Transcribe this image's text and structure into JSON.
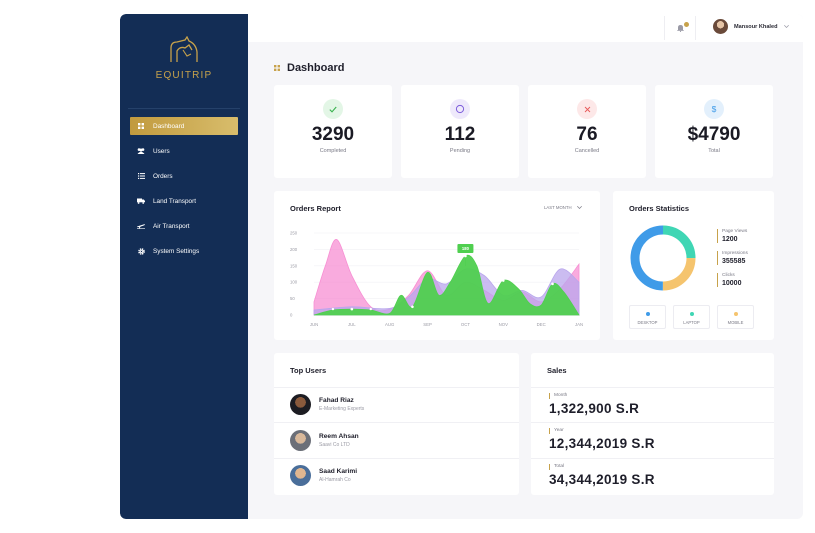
{
  "brand": {
    "name": "EQUITRIP"
  },
  "sidebar": {
    "items": [
      {
        "label": "Dashboard",
        "icon": "grid-icon",
        "active": true
      },
      {
        "label": "Users",
        "icon": "users-icon",
        "active": false
      },
      {
        "label": "Orders",
        "icon": "list-icon",
        "active": false
      },
      {
        "label": "Land Transport",
        "icon": "truck-icon",
        "active": false
      },
      {
        "label": "Air Transport",
        "icon": "plane-icon",
        "active": false
      },
      {
        "label": "System Settings",
        "icon": "gear-icon",
        "active": false
      }
    ]
  },
  "header": {
    "user_name": "Mansour Khaled"
  },
  "page": {
    "title": "Dashboard"
  },
  "stats": [
    {
      "value": "3290",
      "label": "Completed",
      "icon": "check-icon",
      "color": "#37b24d",
      "bg": "#e3f6e6"
    },
    {
      "value": "112",
      "label": "Pending",
      "icon": "pending-circle-icon",
      "color": "#7c5cdb",
      "bg": "#eee9fb"
    },
    {
      "value": "76",
      "label": "Cancelled",
      "icon": "close-icon",
      "color": "#e85a5a",
      "bg": "#fde8e8"
    },
    {
      "value": "$4790",
      "label": "Total",
      "icon": "dollar-icon",
      "color": "#3f9be8",
      "bg": "#e3f0fc"
    }
  ],
  "orders_report": {
    "title": "Orders Report",
    "filter_label": "LAST MONTH"
  },
  "orders_statistics": {
    "title": "Orders Statistics",
    "legend": [
      {
        "name": "Page Views",
        "value": "1200"
      },
      {
        "name": "Impressions",
        "value": "355585"
      },
      {
        "name": "Clicks",
        "value": "10000"
      }
    ],
    "devices": [
      {
        "label": "DESKTOP",
        "color": "#3f9be8"
      },
      {
        "label": "LAPTOP",
        "color": "#3fd6b4"
      },
      {
        "label": "MOBILE",
        "color": "#f5c46e"
      }
    ]
  },
  "top_users": {
    "title": "Top Users",
    "users": [
      {
        "name": "Fahad Riaz",
        "company": "E-Marketing Experts"
      },
      {
        "name": "Reem Ahsan",
        "company": "Saavi Co LTD"
      },
      {
        "name": "Saad Karimi",
        "company": "Al-Hamrah Co"
      }
    ]
  },
  "sales": {
    "title": "Sales",
    "rows": [
      {
        "label": "Month",
        "value": "1,322,900 S.R"
      },
      {
        "label": "Year",
        "value": "12,344,2019 S.R"
      },
      {
        "label": "Total",
        "value": "34,344,2019 S.R"
      }
    ]
  },
  "chart_data": [
    {
      "type": "area",
      "title": "Orders Report",
      "x": [
        "JUN",
        "JUL",
        "AUG",
        "SEP",
        "OCT",
        "NOV",
        "DEC",
        "JAN"
      ],
      "ylim": [
        0,
        250
      ],
      "yticks": [
        0,
        50,
        100,
        150,
        200,
        250
      ],
      "grid": true,
      "annotation": {
        "x": "OCT",
        "text": "180"
      },
      "series": [
        {
          "color": "#f78fd3",
          "x": [
            0,
            0.3,
            0.6,
            1,
            1.5,
            2,
            2.5,
            3,
            3.5,
            4,
            4.5,
            5,
            5.5,
            6,
            6.5,
            7
          ],
          "values": [
            40,
            150,
            230,
            120,
            25,
            18,
            60,
            135,
            60,
            100,
            75,
            45,
            70,
            40,
            80,
            155
          ]
        },
        {
          "color": "#b9a6ec",
          "x": [
            0,
            1,
            2,
            2.5,
            3,
            3.5,
            4,
            4.5,
            5,
            5.5,
            6,
            6.5,
            7
          ],
          "values": [
            15,
            25,
            20,
            55,
            110,
            95,
            140,
            120,
            60,
            75,
            55,
            140,
            100
          ]
        },
        {
          "color": "#4fcf4f",
          "x": [
            0,
            0.5,
            1,
            1.5,
            2,
            2.3,
            2.6,
            3,
            3.3,
            3.6,
            4,
            4.3,
            4.6,
            5,
            5.4,
            5.7,
            6,
            6.3,
            6.6,
            7
          ],
          "values": [
            0,
            15,
            18,
            15,
            5,
            60,
            25,
            130,
            60,
            100,
            180,
            150,
            35,
            105,
            80,
            35,
            30,
            95,
            70,
            0
          ]
        }
      ]
    },
    {
      "type": "pie",
      "title": "Orders Statistics",
      "categories": [
        "Desktop",
        "Laptop",
        "Mobile"
      ],
      "values": [
        50,
        25,
        25
      ],
      "colors": [
        "#3f9be8",
        "#3fd6b4",
        "#f5c46e"
      ]
    }
  ]
}
